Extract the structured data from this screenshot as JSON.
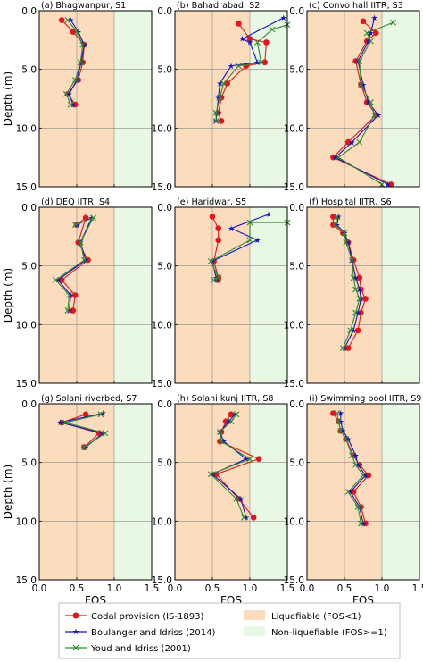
{
  "figure": {
    "ylabel": "Depth (m)",
    "xlabel": "FOS",
    "legend": {
      "codal": "Codal provision (IS-1893)",
      "boulanger": "Boulanger and Idriss (2014)",
      "youd": "Youd and Idriss (2001)",
      "liq": "Liquefiable (FOS<1)",
      "nonliq": "Non-liquefiable (FOS>=1)"
    },
    "colors": {
      "codal": "#e8141b",
      "boulanger": "#1313c8",
      "youd": "#2d8a2d",
      "liquefiable": "#fbdcbd",
      "non_liquefiable": "#e9f8e4",
      "grid": "#8a8a8a"
    }
  },
  "chart_data": [
    {
      "type": "line",
      "title": "(a) Bhagwanpur, S1",
      "xlim": [
        0,
        1.5
      ],
      "ylim": [
        15,
        0
      ],
      "xticks": [
        "0.0",
        "0.5",
        "1.0",
        "1.5"
      ],
      "yticks": [
        "0.0",
        "5.0",
        "10.0",
        "15.0"
      ],
      "series": [
        {
          "name": "Codal provision (IS-1893)",
          "x": [
            0.3,
            0.45,
            0.6,
            0.58,
            0.52,
            0.38,
            0.48
          ],
          "y": [
            0.8,
            1.8,
            2.9,
            4.4,
            5.9,
            7.1,
            8.0
          ]
        },
        {
          "name": "Boulanger and Idriss (2014)",
          "x": [
            0.42,
            0.52,
            0.6,
            0.56,
            0.5,
            0.4,
            0.45
          ],
          "y": [
            0.8,
            1.8,
            2.9,
            4.4,
            5.9,
            7.1,
            8.0
          ]
        },
        {
          "name": "Youd and Idriss (2001)",
          "x": [
            0.38,
            0.5,
            0.58,
            0.55,
            0.48,
            0.36,
            0.42
          ],
          "y": [
            0.8,
            1.8,
            2.9,
            4.4,
            5.9,
            7.1,
            8.0
          ]
        }
      ]
    },
    {
      "type": "line",
      "title": "(b) Bahadrabad, S2",
      "xlim": [
        0,
        1.5
      ],
      "ylim": [
        15,
        0
      ],
      "xticks": [
        "0.0",
        "0.5",
        "1.0",
        "1.5"
      ],
      "yticks": [
        "0.0",
        "5.0",
        "10.0",
        "15.0"
      ],
      "series": [
        {
          "name": "Codal provision (IS-1893)",
          "x": [
            0.85,
            1.0,
            1.22,
            1.2,
            0.95,
            0.7,
            0.62,
            0.58,
            0.62
          ],
          "y": [
            1.1,
            2.4,
            2.7,
            4.4,
            4.7,
            6.2,
            7.4,
            8.7,
            9.4
          ]
        },
        {
          "name": "Boulanger and Idriss (2014)",
          "x": [
            1.45,
            0.9,
            1.0,
            1.1,
            0.75,
            0.6,
            0.58,
            0.56,
            0.55
          ],
          "y": [
            0.6,
            2.4,
            2.7,
            4.4,
            4.7,
            6.2,
            7.4,
            8.7,
            9.4
          ]
        },
        {
          "name": "Youd and Idriss (2001)",
          "x": [
            1.5,
            1.3,
            1.1,
            1.15,
            0.85,
            0.65,
            0.6,
            0.55,
            0.55
          ],
          "y": [
            1.2,
            1.6,
            2.7,
            4.4,
            4.7,
            6.2,
            7.4,
            8.7,
            9.4
          ]
        }
      ]
    },
    {
      "type": "line",
      "title": "(c) Convo hall IITR, S3",
      "xlim": [
        0,
        1.5
      ],
      "ylim": [
        15,
        0
      ],
      "xticks": [
        "0.0",
        "0.5",
        "1.0",
        "1.5"
      ],
      "yticks": [
        "0.0",
        "5.0",
        "10.0",
        "15.0"
      ],
      "series": [
        {
          "name": "Codal provision (IS-1893)",
          "x": [
            0.75,
            0.92,
            0.8,
            0.65,
            0.72,
            0.8,
            0.92,
            0.55,
            0.35,
            1.12
          ],
          "y": [
            0.9,
            1.9,
            2.6,
            4.3,
            6.3,
            7.8,
            8.9,
            11.2,
            12.5,
            14.8
          ]
        },
        {
          "name": "Boulanger and Idriss (2014)",
          "x": [
            0.9,
            0.85,
            0.82,
            0.68,
            0.75,
            0.82,
            0.95,
            0.6,
            0.38,
            1.08
          ],
          "y": [
            0.6,
            1.9,
            2.6,
            4.3,
            6.3,
            7.8,
            8.9,
            11.2,
            12.5,
            14.8
          ]
        },
        {
          "name": "Youd and Idriss (2001)",
          "x": [
            1.15,
            0.8,
            0.85,
            0.7,
            0.72,
            0.85,
            0.9,
            0.7,
            0.42,
            1.0
          ],
          "y": [
            1.0,
            1.9,
            2.6,
            4.3,
            6.3,
            7.8,
            8.9,
            11.2,
            12.5,
            14.8
          ]
        }
      ]
    },
    {
      "type": "line",
      "title": "(d) DEQ IITR, S4",
      "xlim": [
        0,
        1.5
      ],
      "ylim": [
        15,
        0
      ],
      "xticks": [
        "0.0",
        "0.5",
        "1.0",
        "1.5"
      ],
      "yticks": [
        "0.0",
        "5.0",
        "10.0",
        "15.0"
      ],
      "series": [
        {
          "name": "Codal provision (IS-1893)",
          "x": [
            0.5,
            0.62,
            0.52,
            0.65,
            0.3,
            0.48,
            0.45
          ],
          "y": [
            1.5,
            0.9,
            3.0,
            4.5,
            6.2,
            7.5,
            8.8
          ]
        },
        {
          "name": "Boulanger and Idriss (2014)",
          "x": [
            0.5,
            0.7,
            0.55,
            0.62,
            0.25,
            0.42,
            0.4
          ],
          "y": [
            1.5,
            0.9,
            3.0,
            4.5,
            6.2,
            7.5,
            8.8
          ]
        },
        {
          "name": "Youd and Idriss (2001)",
          "x": [
            0.48,
            0.72,
            0.55,
            0.6,
            0.22,
            0.4,
            0.38
          ],
          "y": [
            1.5,
            0.9,
            3.0,
            4.5,
            6.2,
            7.5,
            8.8
          ]
        }
      ]
    },
    {
      "type": "line",
      "title": "(e) Haridwar, S5",
      "xlim": [
        0,
        1.5
      ],
      "ylim": [
        15,
        0
      ],
      "xticks": [
        "0.0",
        "0.5",
        "1.0",
        "1.5"
      ],
      "yticks": [
        "0.0",
        "5.0",
        "10.0",
        "15.0"
      ],
      "series": [
        {
          "name": "Codal provision (IS-1893)",
          "x": [
            0.5,
            0.58,
            0.58,
            0.52,
            0.58,
            0.58
          ],
          "y": [
            0.8,
            1.8,
            2.8,
            4.6,
            6.0,
            6.2
          ]
        },
        {
          "name": "Boulanger and Idriss (2014)",
          "x": [
            1.25,
            0.75,
            1.1,
            0.5,
            0.55,
            0.55
          ],
          "y": [
            0.6,
            1.8,
            2.8,
            4.6,
            6.0,
            6.2
          ]
        },
        {
          "name": "Youd and Idriss (2001)",
          "x": [
            1.5,
            1.0,
            1.0,
            0.48,
            0.58,
            0.52
          ],
          "y": [
            1.3,
            1.3,
            2.8,
            4.6,
            6.0,
            6.2
          ]
        }
      ]
    },
    {
      "type": "line",
      "title": "(f) Hospital IITR, S6",
      "xlim": [
        0,
        1.5
      ],
      "ylim": [
        15,
        0
      ],
      "xticks": [
        "0.0",
        "0.5",
        "1.0",
        "1.5"
      ],
      "yticks": [
        "0.0",
        "5.0",
        "10.0",
        "15.0"
      ],
      "series": [
        {
          "name": "Codal provision (IS-1893)",
          "x": [
            0.35,
            0.35,
            0.48,
            0.55,
            0.62,
            0.7,
            0.72,
            0.78,
            0.72,
            0.68,
            0.55
          ],
          "y": [
            0.8,
            1.5,
            2.2,
            3.0,
            4.5,
            6.0,
            7.0,
            7.8,
            9.0,
            10.5,
            12.0
          ]
        },
        {
          "name": "Boulanger and Idriss (2014)",
          "x": [
            0.42,
            0.4,
            0.5,
            0.55,
            0.6,
            0.65,
            0.7,
            0.72,
            0.68,
            0.62,
            0.5
          ],
          "y": [
            0.8,
            1.5,
            2.2,
            3.0,
            4.5,
            6.0,
            7.0,
            7.8,
            9.0,
            10.5,
            12.0
          ]
        },
        {
          "name": "Youd and Idriss (2001)",
          "x": [
            0.4,
            0.38,
            0.5,
            0.52,
            0.6,
            0.62,
            0.65,
            0.7,
            0.65,
            0.58,
            0.48
          ],
          "y": [
            0.8,
            1.5,
            2.2,
            3.0,
            4.5,
            6.0,
            7.0,
            7.8,
            9.0,
            10.5,
            12.0
          ]
        }
      ]
    },
    {
      "type": "line",
      "title": "(g) Solani riverbed, S7",
      "xlim": [
        0,
        1.5
      ],
      "ylim": [
        15,
        0
      ],
      "xticks": [
        "0.0",
        "0.5",
        "1.0",
        "1.5"
      ],
      "yticks": [
        "0.0",
        "5.0",
        "10.0",
        "15.0"
      ],
      "series": [
        {
          "name": "Codal provision (IS-1893)",
          "x": [
            0.62,
            0.3,
            0.8,
            0.6
          ],
          "y": [
            0.9,
            1.6,
            2.5,
            3.7
          ]
        },
        {
          "name": "Boulanger and Idriss (2014)",
          "x": [
            0.85,
            0.28,
            0.85,
            0.62
          ],
          "y": [
            0.8,
            1.6,
            2.5,
            3.7
          ]
        },
        {
          "name": "Youd and Idriss (2001)",
          "x": [
            0.82,
            0.35,
            0.88,
            0.6
          ],
          "y": [
            0.9,
            1.6,
            2.5,
            3.7
          ]
        }
      ]
    },
    {
      "type": "line",
      "title": "(h) Solani kunj IITR, S8",
      "xlim": [
        0,
        1.5
      ],
      "ylim": [
        15,
        0
      ],
      "xticks": [
        "0.0",
        "0.5",
        "1.0",
        "1.5"
      ],
      "yticks": [
        "0.0",
        "5.0",
        "10.0",
        "15.0"
      ],
      "series": [
        {
          "name": "Codal provision (IS-1893)",
          "x": [
            0.75,
            0.68,
            0.62,
            0.6,
            1.12,
            0.55,
            0.85,
            1.05
          ],
          "y": [
            0.9,
            1.5,
            2.4,
            3.2,
            4.7,
            6.0,
            8.1,
            9.7
          ]
        },
        {
          "name": "Boulanger and Idriss (2014)",
          "x": [
            0.8,
            0.72,
            0.6,
            0.65,
            0.95,
            0.5,
            0.88,
            0.95
          ],
          "y": [
            0.9,
            1.5,
            2.4,
            3.2,
            4.7,
            6.0,
            8.1,
            9.7
          ]
        },
        {
          "name": "Youd and Idriss (2001)",
          "x": [
            0.82,
            0.75,
            0.6,
            0.62,
            1.0,
            0.48,
            0.82,
            0.92
          ],
          "y": [
            0.9,
            1.5,
            2.4,
            3.2,
            4.7,
            6.0,
            8.1,
            9.7
          ]
        }
      ]
    },
    {
      "type": "line",
      "title": "(i) Swimming pool IITR, S9",
      "xlim": [
        0,
        1.5
      ],
      "ylim": [
        15,
        0
      ],
      "xticks": [
        "0.0",
        "0.5",
        "1.0",
        "1.5"
      ],
      "yticks": [
        "0.0",
        "5.0",
        "10.0",
        "15.0"
      ],
      "series": [
        {
          "name": "Codal provision (IS-1893)",
          "x": [
            0.35,
            0.42,
            0.45,
            0.52,
            0.62,
            0.7,
            0.82,
            0.62,
            0.72,
            0.78
          ],
          "y": [
            0.8,
            1.5,
            2.3,
            3.0,
            4.4,
            5.2,
            6.1,
            7.5,
            8.8,
            10.2
          ]
        },
        {
          "name": "Boulanger and Idriss (2014)",
          "x": [
            0.45,
            0.45,
            0.48,
            0.55,
            0.65,
            0.68,
            0.78,
            0.58,
            0.7,
            0.75
          ],
          "y": [
            0.8,
            1.5,
            2.3,
            3.0,
            4.4,
            5.2,
            6.1,
            7.5,
            8.8,
            10.2
          ]
        },
        {
          "name": "Youd and Idriss (2001)",
          "x": [
            0.4,
            0.42,
            0.45,
            0.52,
            0.6,
            0.65,
            0.75,
            0.55,
            0.68,
            0.72
          ],
          "y": [
            0.8,
            1.5,
            2.3,
            3.0,
            4.4,
            5.2,
            6.1,
            7.5,
            8.8,
            10.2
          ]
        }
      ]
    }
  ]
}
